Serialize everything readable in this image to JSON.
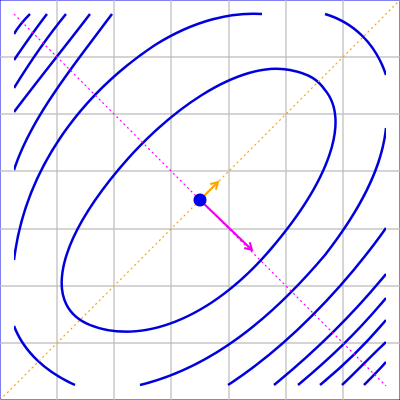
{
  "figure": {
    "type": "contour-plot",
    "grid": true,
    "background_color": "#ffffff",
    "grid_color": "#bbbbbb",
    "colors": {
      "contours": "#0000dd",
      "center_point": "#0000ee",
      "principal_axis_1": "#ffa500",
      "principal_axis_2": "#ff00ff",
      "vector_1": "#ffa500",
      "vector_2": "#ee00ee"
    },
    "contour_shape": "rotated ellipse",
    "contour_count": 5,
    "center_marker": "filled circle",
    "axis_1_style": "dotted",
    "axis_2_style": "dotted",
    "vector_1_style": "arrow",
    "vector_2_style": "arrow"
  }
}
